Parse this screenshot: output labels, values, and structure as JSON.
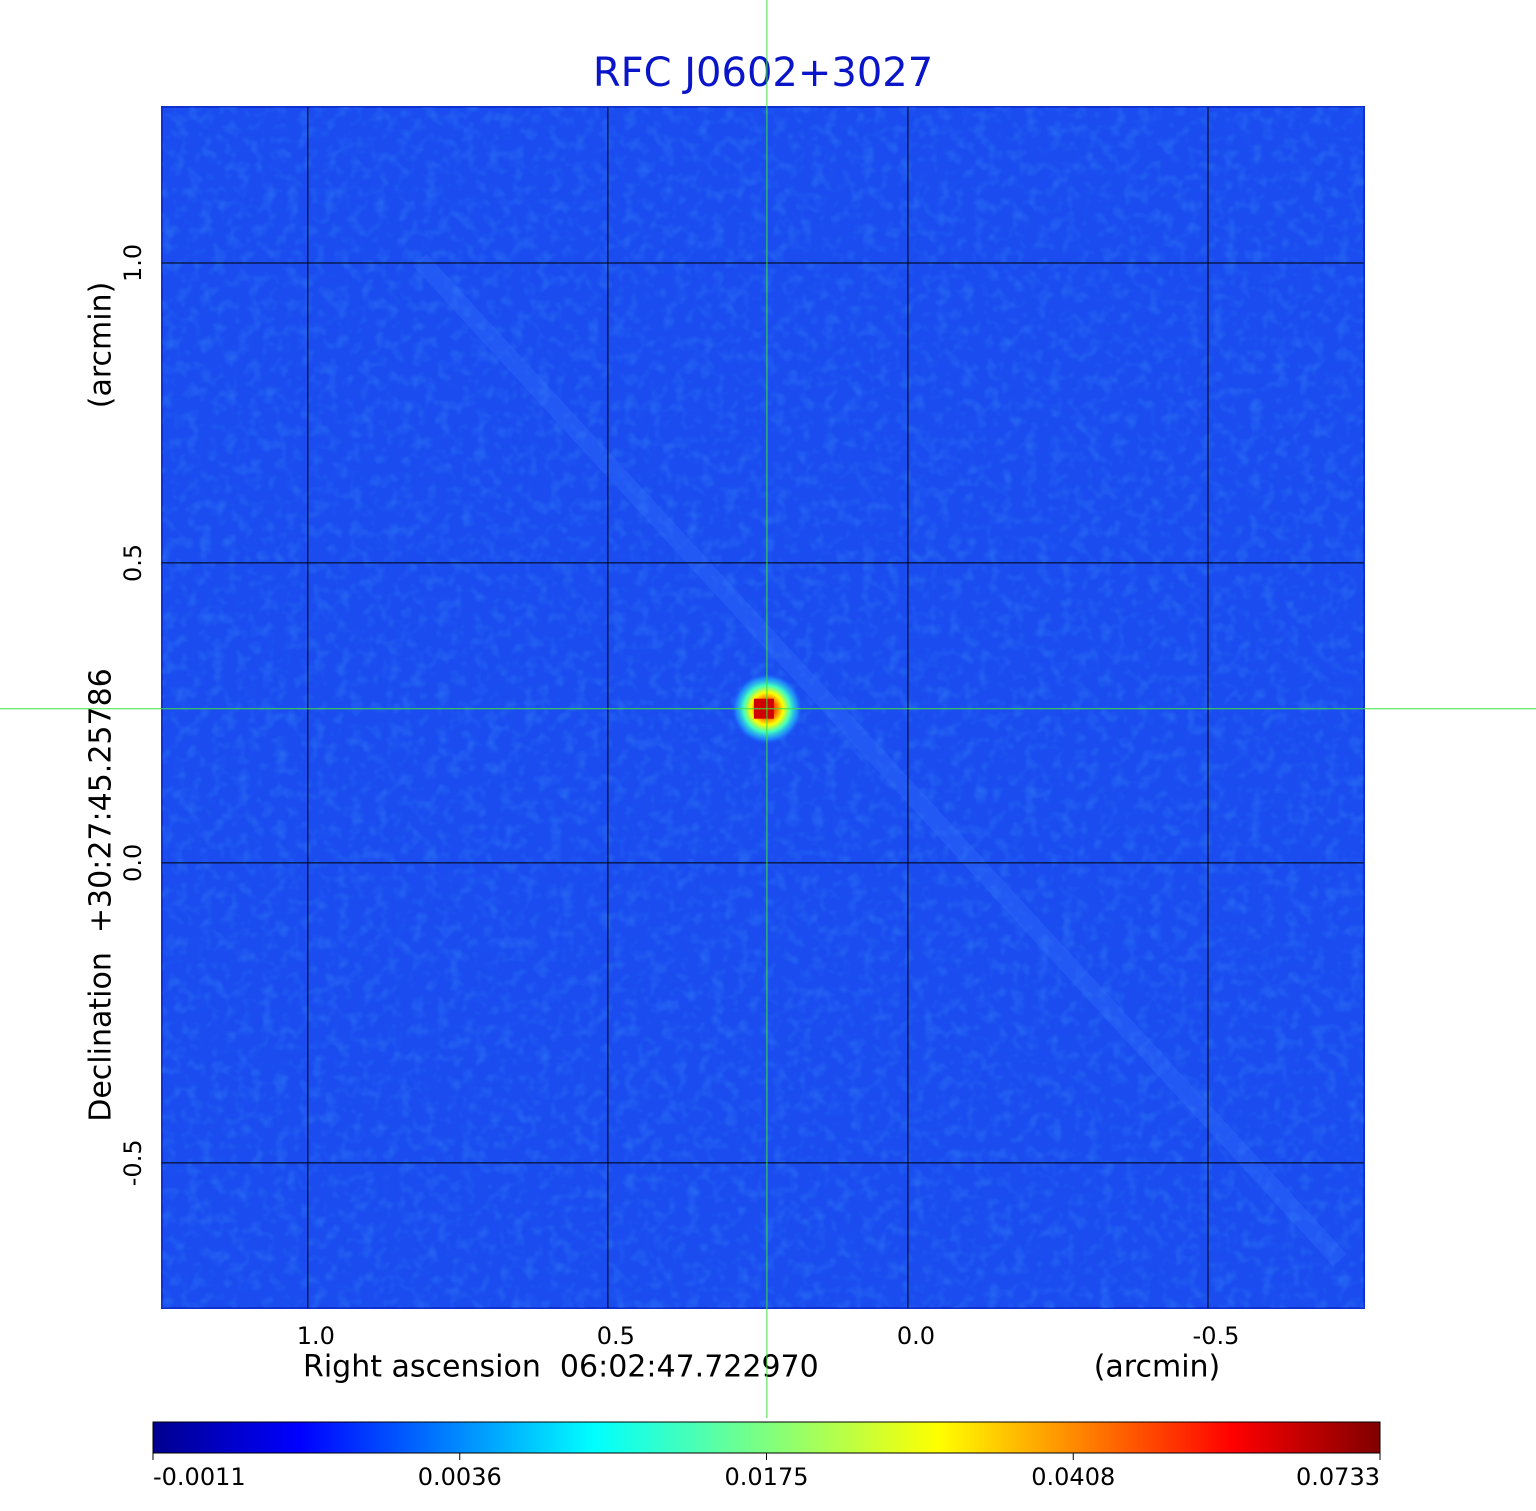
{
  "chart_data": {
    "type": "image",
    "title": "RFC J0602+3027",
    "x_label": "Right ascension  06:02:47.722970",
    "x_unit": "(arcmin)",
    "y_label": "Declination  +30:27:45.25786",
    "y_unit": "(arcmin)",
    "xlim": [
      1.243,
      -0.76
    ],
    "ylim": [
      -0.742,
      1.26
    ],
    "xticks": [
      {
        "value": 1,
        "label": "1.0"
      },
      0.5,
      {
        "value": 0,
        "label": "0.0"
      },
      -0.5
    ],
    "yticks": [
      -0.5,
      {
        "value": 0,
        "label": "0.0"
      },
      0.5,
      {
        "value": 1,
        "label": "1.0"
      }
    ],
    "grid": true,
    "source_position": {
      "x": 0.235,
      "y": 0.257
    },
    "colormap": "jet",
    "colorbar_ticks": [
      -0.0011,
      0.0036,
      0.0175,
      0.0408,
      0.0733
    ]
  }
}
